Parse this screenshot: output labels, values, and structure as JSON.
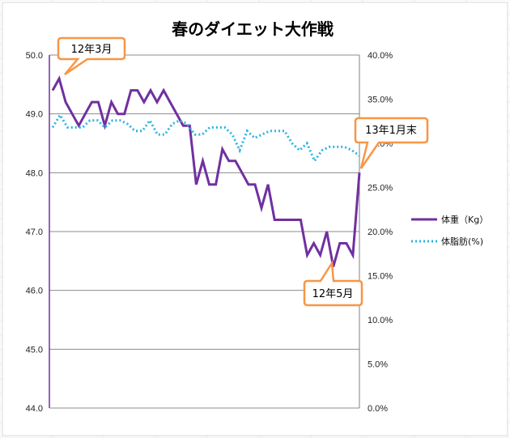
{
  "chart_data": {
    "type": "line",
    "title": "春のダイエット大作戦",
    "y_left": {
      "ylim": [
        44.0,
        50.0
      ],
      "ticks": [
        "50.0",
        "49.0",
        "48.0",
        "47.0",
        "46.0",
        "45.0",
        "44.0"
      ]
    },
    "y_right": {
      "ylim": [
        0,
        40
      ],
      "ticks": [
        "40.0%",
        "35.0%",
        "30.0%",
        "25.0%",
        "20.0%",
        "15.0%",
        "10.0%",
        "5.0%",
        "0.0%"
      ]
    },
    "grid": true,
    "legend_position": "right",
    "series": [
      {
        "name": "体重（Kg）",
        "axis": "left",
        "color": "#7030a0",
        "style": "solid",
        "values": [
          49.4,
          49.6,
          49.2,
          49.0,
          48.8,
          49.0,
          49.2,
          49.2,
          48.8,
          49.2,
          49.0,
          49.0,
          49.4,
          49.4,
          49.2,
          49.4,
          49.2,
          49.4,
          49.2,
          49.0,
          48.8,
          48.8,
          47.8,
          48.2,
          47.8,
          47.8,
          48.4,
          48.2,
          48.2,
          48.0,
          47.8,
          47.8,
          47.4,
          47.8,
          47.2,
          47.2,
          47.2,
          47.2,
          47.2,
          46.6,
          46.8,
          46.6,
          47.0,
          46.4,
          46.8,
          46.8,
          46.6,
          48.0
        ]
      },
      {
        "name": "体脂肪(%)",
        "axis": "right",
        "color": "#2bb5e3",
        "style": "dotted",
        "values": [
          31.8,
          33.2,
          31.8,
          31.8,
          31.8,
          32.6,
          32.6,
          31.8,
          32.6,
          32.6,
          32.2,
          31.4,
          31.4,
          32.6,
          31.0,
          31.0,
          32.2,
          32.6,
          32.2,
          31.0,
          31.0,
          31.8,
          31.8,
          31.8,
          31.0,
          29.2,
          31.4,
          30.6,
          31.0,
          31.4,
          31.4,
          31.4,
          30.0,
          29.2,
          30.0,
          28.0,
          29.2,
          29.6,
          29.6,
          29.6,
          29.2,
          28.6
        ]
      }
    ],
    "annotations": [
      {
        "text": "12年3月"
      },
      {
        "text": "13年1月末"
      },
      {
        "text": "12年5月"
      }
    ]
  }
}
